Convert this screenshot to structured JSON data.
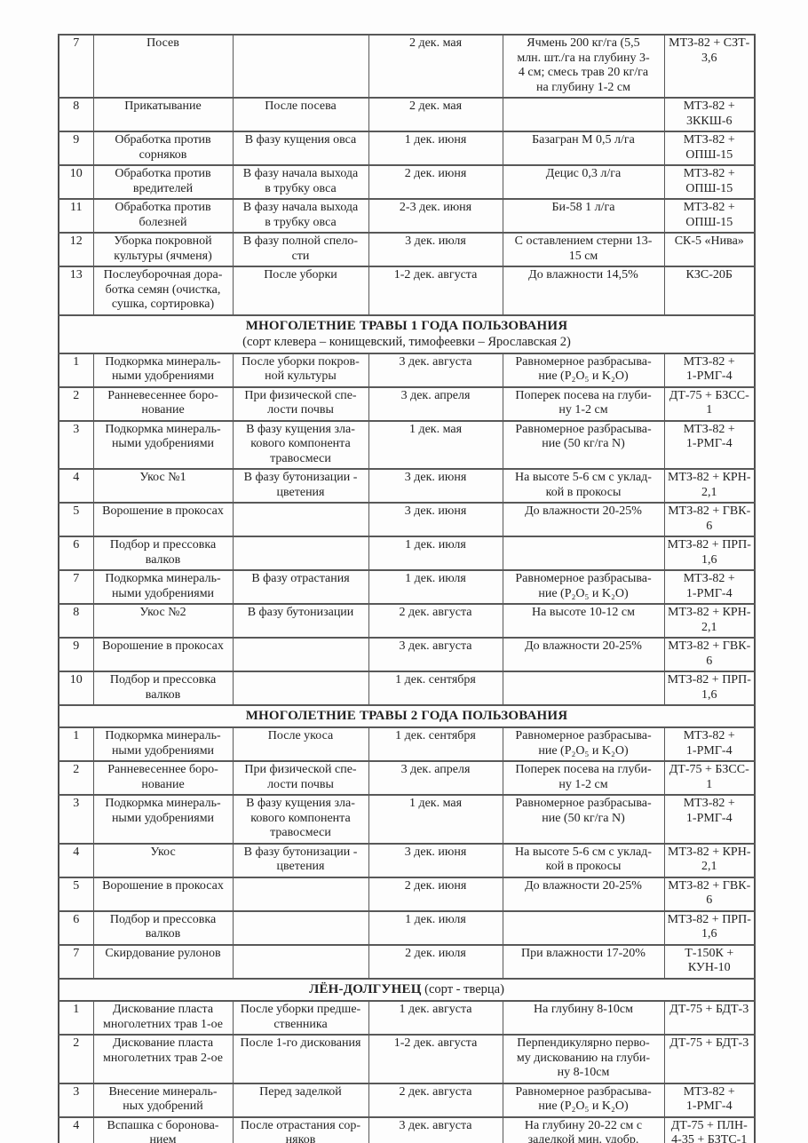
{
  "document": {
    "type": "scanned-agronomy-operations-table",
    "colors": {
      "border": "#585858",
      "text": "#222222",
      "background": "#fdfdfd"
    },
    "sections": [
      {
        "title": "",
        "subtitle": "",
        "subtitle_inline": false,
        "rows": [
          {
            "num": "7",
            "operation": "Посев",
            "condition": "",
            "timing": "2 дек. мая",
            "requirements": "Ячмень 200 кг/га (5,5\nмлн. шт./га на глубину 3-\n4 см; смесь трав 20 кг/га\nна глубину 1-2 см",
            "machinery": "МТЗ-82 + СЗТ-\n3,6"
          },
          {
            "num": "8",
            "operation": "Прикатывание",
            "condition": "После посева",
            "timing": "2 дек. мая",
            "requirements": "",
            "machinery": "МТЗ-82 +\n3ККШ-6"
          },
          {
            "num": "9",
            "operation": "Обработка против\nсорняков",
            "condition": "В фазу кущения овса",
            "timing": "1 дек. июня",
            "requirements": "Базагран М 0,5 л/га",
            "machinery": "МТЗ-82 +\nОПШ-15"
          },
          {
            "num": "10",
            "operation": "Обработка против\nвредителей",
            "condition": "В фазу начала выхода\nв трубку овса",
            "timing": "2 дек. июня",
            "requirements": "Децис 0,3 л/га",
            "machinery": "МТЗ-82 +\nОПШ-15"
          },
          {
            "num": "11",
            "operation": "Обработка против\nболезней",
            "condition": "В фазу начала выхода\nв трубку овса",
            "timing": "2-3 дек. июня",
            "requirements": "Би-58 1 л/га",
            "machinery": "МТЗ-82 +\nОПШ-15"
          },
          {
            "num": "12",
            "operation": "Уборка покровной\nкультуры (ячменя)",
            "condition": "В фазу полной спело-\nсти",
            "timing": "3 дек. июля",
            "requirements": "С оставлением стерни 13-\n15 см",
            "machinery": "СК-5 «Нива»"
          },
          {
            "num": "13",
            "operation": "Послеуборочная дора-\nботка семян (очистка,\nсушка, сортировка)",
            "condition": "После уборки",
            "timing": "1-2 дек. августа",
            "requirements": "До влажности 14,5%",
            "machinery": "КЗС-20Б"
          }
        ]
      },
      {
        "title": "МНОГОЛЕТНИЕ ТРАВЫ 1 ГОДА ПОЛЬЗОВАНИЯ",
        "subtitle": "(сорт клевера – конищевский, тимофеевки – Ярославская 2)",
        "subtitle_inline": false,
        "rows": [
          {
            "num": "1",
            "operation": "Подкормка минераль-\nными удобрениями",
            "condition": "После уборки покров-\nной культуры",
            "timing": "3 дек. августа",
            "requirements": "Равномерное разбрасыва-\nние (P₂O₅ и K₂O)",
            "machinery": "МТЗ-82 +\n1-РМГ-4"
          },
          {
            "num": "2",
            "operation": "Ранневесеннее боро-\nнование",
            "condition": "При физической спе-\nлости почвы",
            "timing": "3 дек. апреля",
            "requirements": "Поперек посева на глуби-\nну 1-2 см",
            "machinery": "ДТ-75 + БЗСС-\n1"
          },
          {
            "num": "3",
            "operation": "Подкормка минераль-\nными удобрениями",
            "condition": "В фазу кущения зла-\nкового компонента\nтравосмеси",
            "timing": "1 дек. мая",
            "requirements": "Равномерное разбрасыва-\nние (50 кг/га N)",
            "machinery": "МТЗ-82 +\n1-РМГ-4"
          },
          {
            "num": "4",
            "operation": "Укос №1",
            "condition": "В фазу бутонизации -\nцветения",
            "timing": "3 дек. июня",
            "requirements": "На высоте 5-6 см с уклад-\nкой в прокосы",
            "machinery": "МТЗ-82 + КРН-\n2,1"
          },
          {
            "num": "5",
            "operation": "Ворошение в прокосах",
            "condition": "",
            "timing": "3 дек. июня",
            "requirements": "До влажности 20-25%",
            "machinery": "МТЗ-82 + ГВК-\n6"
          },
          {
            "num": "6",
            "operation": "Подбор и прессовка\nвалков",
            "condition": "",
            "timing": "1 дек. июля",
            "requirements": "",
            "machinery": "МТЗ-82 + ПРП-\n1,6"
          },
          {
            "num": "7",
            "operation": "Подкормка минераль-\nными удобрениями",
            "condition": "В фазу отрастания",
            "timing": "1 дек. июля",
            "requirements": "Равномерное разбрасыва-\nние (P₂O₅ и K₂O)",
            "machinery": "МТЗ-82 +\n1-РМГ-4"
          },
          {
            "num": "8",
            "operation": "Укос №2",
            "condition": "В фазу бутонизации",
            "timing": "2 дек. августа",
            "requirements": "На высоте 10-12 см",
            "machinery": "МТЗ-82 + КРН-\n2,1"
          },
          {
            "num": "9",
            "operation": "Ворошение в прокосах",
            "condition": "",
            "timing": "3 дек. августа",
            "requirements": "До влажности 20-25%",
            "machinery": "МТЗ-82 + ГВК-\n6"
          },
          {
            "num": "10",
            "operation": "Подбор и прессовка\nвалков",
            "condition": "",
            "timing": "1 дек. сентября",
            "requirements": "",
            "machinery": "МТЗ-82 + ПРП-\n1,6"
          }
        ]
      },
      {
        "title": "МНОГОЛЕТНИЕ ТРАВЫ 2 ГОДА ПОЛЬЗОВАНИЯ",
        "subtitle": "",
        "subtitle_inline": false,
        "rows": [
          {
            "num": "1",
            "operation": "Подкормка минераль-\nными удобрениями",
            "condition": "После укоса",
            "timing": "1 дек. сентября",
            "requirements": "Равномерное разбрасыва-\nние (P₂O₅ и K₂O)",
            "machinery": "МТЗ-82 +\n1-РМГ-4"
          },
          {
            "num": "2",
            "operation": "Ранневесеннее боро-\nнование",
            "condition": "При физической спе-\nлости почвы",
            "timing": "3 дек. апреля",
            "requirements": "Поперек посева на глуби-\nну 1-2 см",
            "machinery": "ДТ-75 + БЗСС-\n1"
          },
          {
            "num": "3",
            "operation": "Подкормка минераль-\nными удобрениями",
            "condition": "В фазу кущения зла-\nкового компонента\nтравосмеси",
            "timing": "1 дек. мая",
            "requirements": "Равномерное разбрасыва-\nние (50 кг/га N)",
            "machinery": "МТЗ-82 +\n1-РМГ-4"
          },
          {
            "num": "4",
            "operation": "Укос",
            "condition": "В фазу бутонизации -\nцветения",
            "timing": "3 дек. июня",
            "requirements": "На высоте 5-6 см с уклад-\nкой в прокосы",
            "machinery": "МТЗ-82 + КРН-\n2,1"
          },
          {
            "num": "5",
            "operation": "Ворошение в прокосах",
            "condition": "",
            "timing": "2 дек. июня",
            "requirements": "До влажности 20-25%",
            "machinery": "МТЗ-82 + ГВК-\n6"
          },
          {
            "num": "6",
            "operation": "Подбор и прессовка\nвалков",
            "condition": "",
            "timing": "1 дек. июля",
            "requirements": "",
            "machinery": "МТЗ-82 + ПРП-\n1,6"
          },
          {
            "num": "7",
            "operation": "Скирдование рулонов",
            "condition": "",
            "timing": "2 дек. июля",
            "requirements": "При влажности 17-20%",
            "machinery": "Т-150К +\nКУН-10"
          }
        ]
      },
      {
        "title": "ЛЁН-ДОЛГУНЕЦ",
        "subtitle": "(сорт - тверца)",
        "subtitle_inline": true,
        "rows": [
          {
            "num": "1",
            "operation": "Дискование пласта\nмноголетних трав 1-ое",
            "condition": "После уборки предше-\nственника",
            "timing": "1 дек. августа",
            "requirements": "На глубину 8-10см",
            "machinery": "ДТ-75 + БДТ-3"
          },
          {
            "num": "2",
            "operation": "Дискование пласта\nмноголетних трав 2-ое",
            "condition": "После 1-го дискования",
            "timing": "1-2 дек. августа",
            "requirements": "Перпендикулярно перво-\nму дискованию на глуби-\nну 8-10см",
            "machinery": "ДТ-75 + БДТ-3"
          },
          {
            "num": "3",
            "operation": "Внесение минераль-\nных удобрений",
            "condition": "Перед заделкой",
            "timing": "2 дек. августа",
            "requirements": "Равномерное разбрасыва-\nние (P₂O₅ и K₂O)",
            "machinery": "МТЗ-82 +\n1-РМГ-4"
          },
          {
            "num": "4",
            "operation": "Вспашка с боронова-\nнием",
            "condition": "После отрастания сор-\nняков",
            "timing": "3 дек. августа",
            "requirements": "На глубину 20-22 см с\nзаделкой мин. удобр.",
            "machinery": "ДТ-75 + ПЛН-\n4-35 + БЗТС-1"
          }
        ]
      }
    ]
  }
}
